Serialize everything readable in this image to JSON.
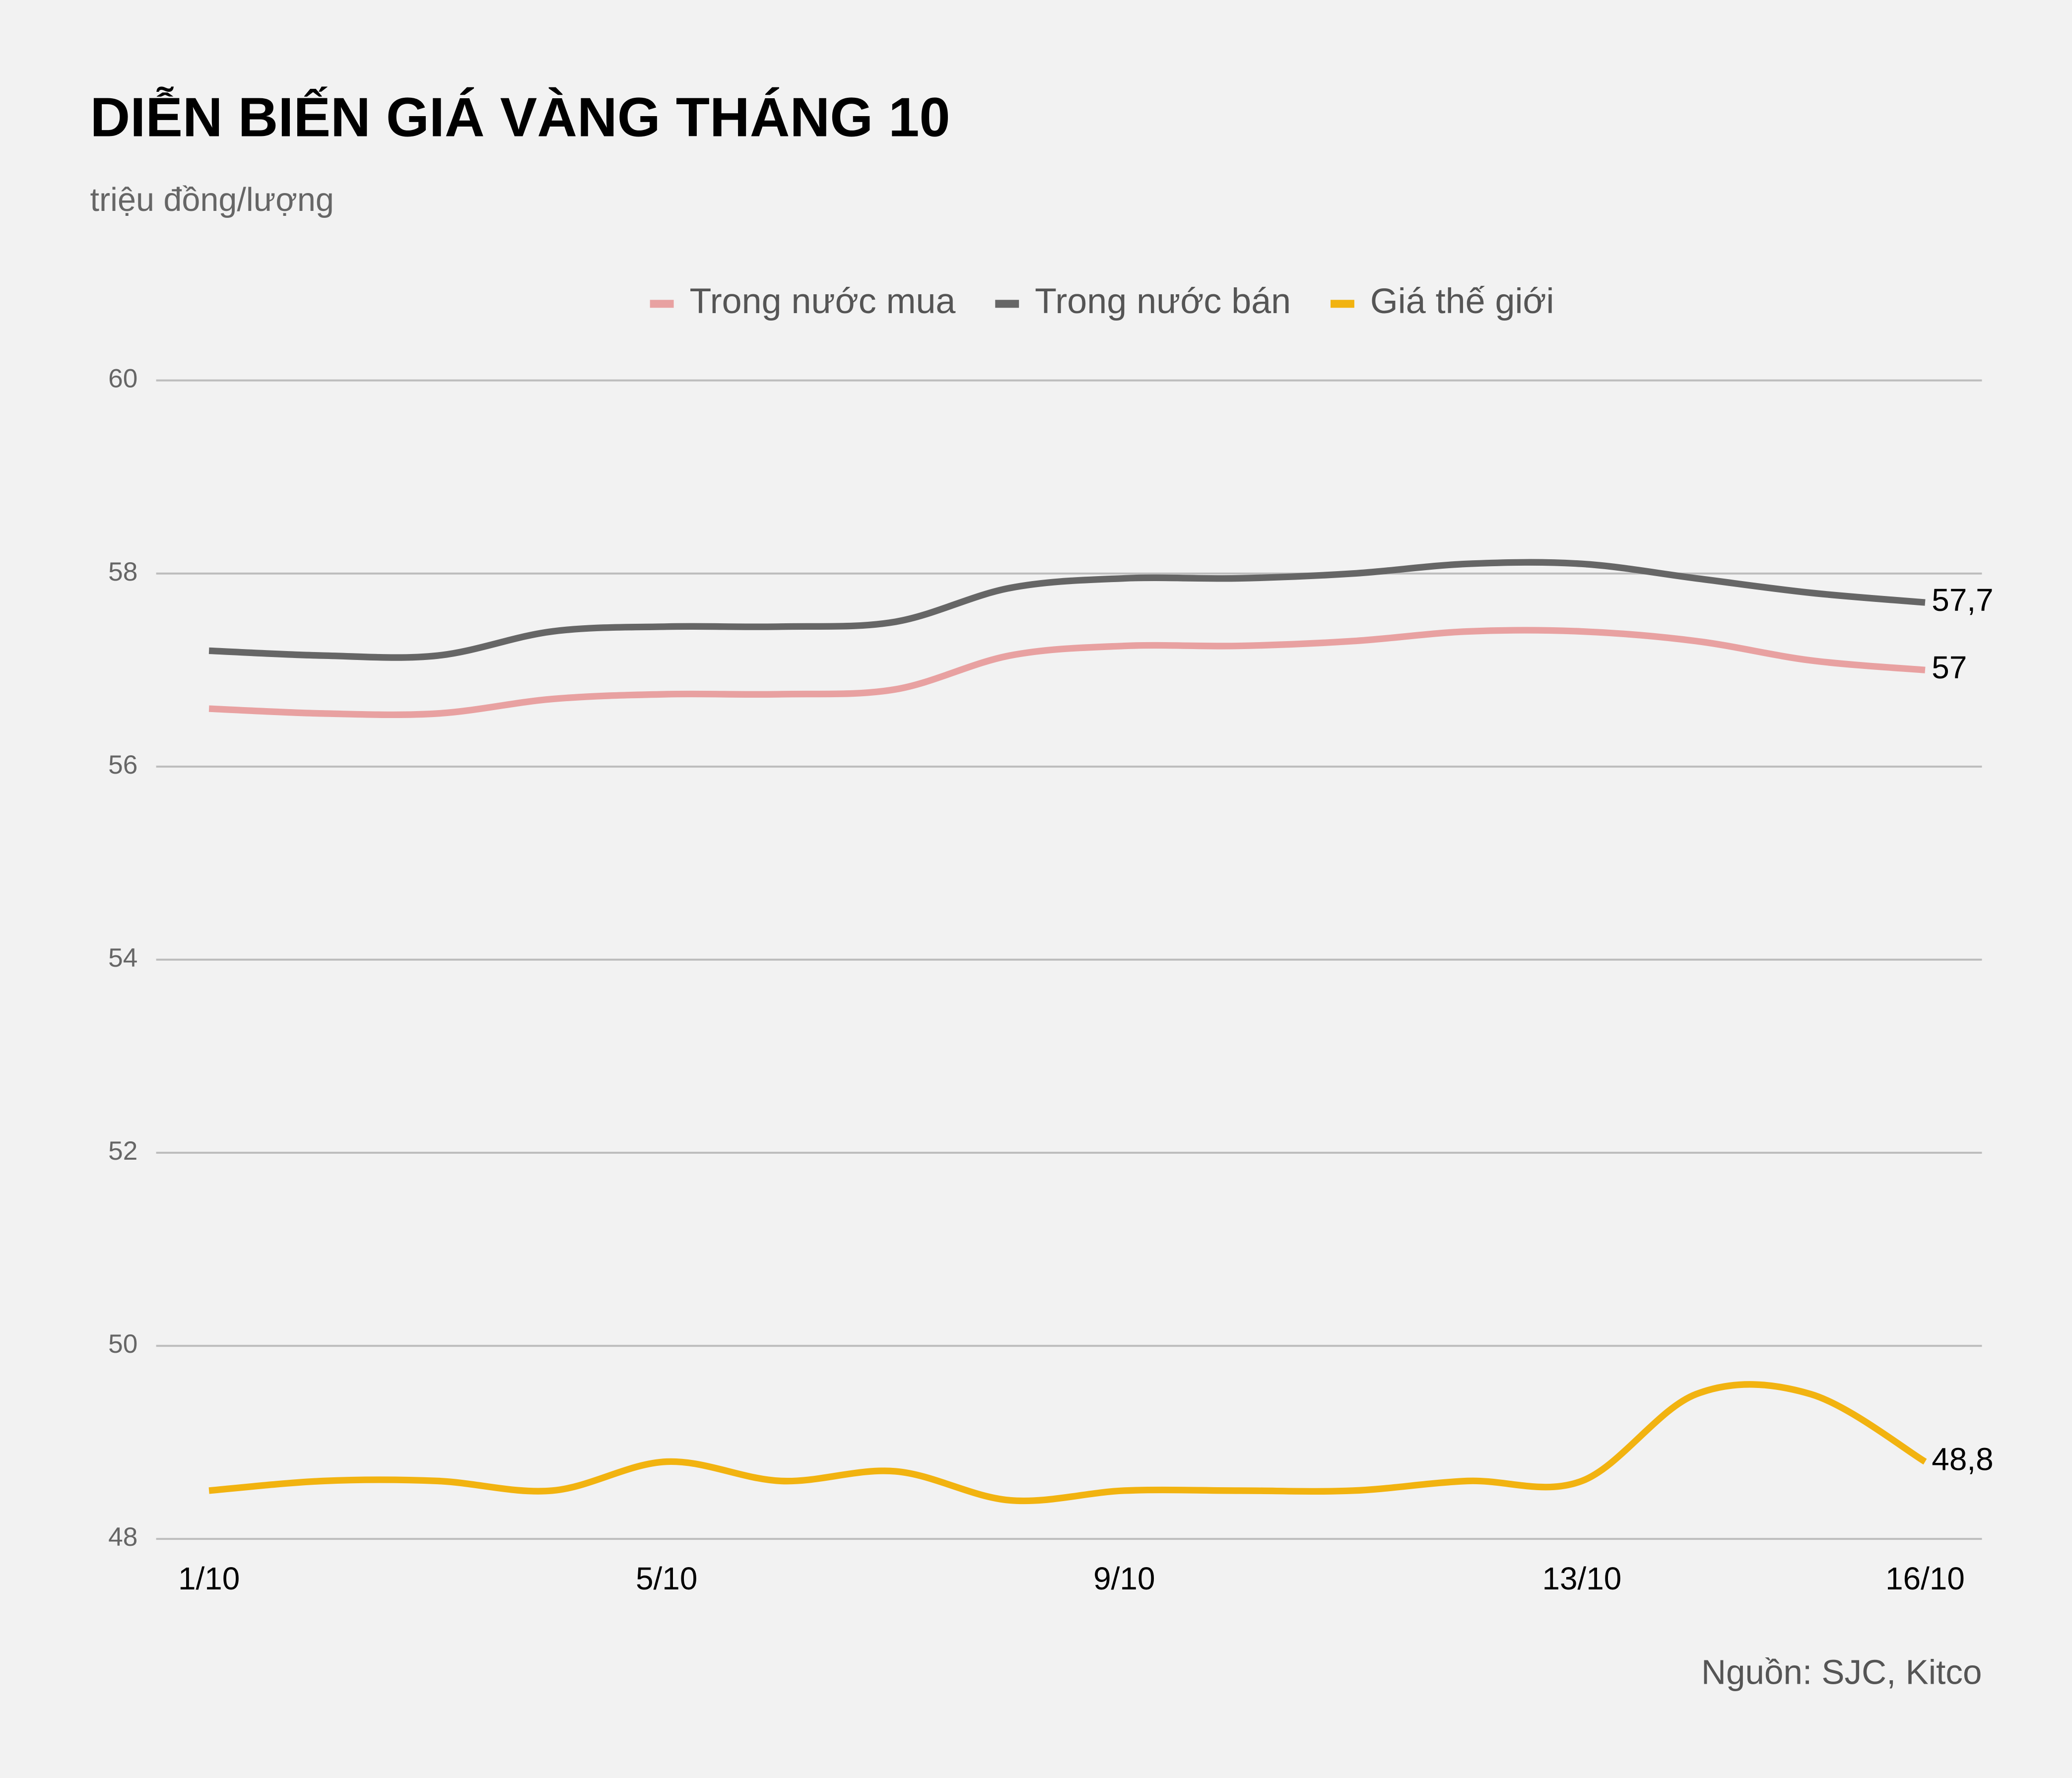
{
  "chart_data": {
    "type": "line",
    "title": "DIỄN BIẾN GIÁ VÀNG THÁNG 10",
    "subtitle": "triệu đồng/lượng",
    "source": "Nguồn: SJC, Kitco",
    "categories": [
      "1/10",
      null,
      null,
      null,
      "5/10",
      null,
      null,
      null,
      "9/10",
      null,
      null,
      null,
      "13/10",
      null,
      null,
      "16/10"
    ],
    "series": [
      {
        "name": "Trong nước mua",
        "color": "#e8a1a1",
        "values": [
          56.6,
          56.55,
          56.55,
          56.7,
          56.75,
          56.75,
          56.8,
          57.15,
          57.25,
          57.25,
          57.3,
          57.4,
          57.4,
          57.3,
          57.1,
          57
        ],
        "value_labels": [
          null,
          null,
          null,
          null,
          null,
          null,
          null,
          null,
          null,
          null,
          null,
          null,
          null,
          null,
          null,
          "57"
        ]
      },
      {
        "name": "Trong nước bán",
        "color": "#666666",
        "values": [
          57.2,
          57.15,
          57.15,
          57.4,
          57.45,
          57.45,
          57.5,
          57.85,
          57.95,
          57.95,
          58.0,
          58.1,
          58.1,
          57.95,
          57.8,
          57.7
        ],
        "value_labels": [
          null,
          null,
          null,
          null,
          null,
          null,
          null,
          null,
          null,
          null,
          null,
          null,
          null,
          null,
          null,
          "57,7"
        ]
      },
      {
        "name": "Giá thế giới",
        "color": "#f2b310",
        "values": [
          48.5,
          48.6,
          48.6,
          48.5,
          48.8,
          48.6,
          48.7,
          48.4,
          48.5,
          48.5,
          48.5,
          48.6,
          48.6,
          49.5,
          49.5,
          48.8
        ],
        "value_labels": [
          null,
          null,
          null,
          null,
          null,
          null,
          null,
          null,
          null,
          null,
          null,
          null,
          null,
          null,
          null,
          "48,8"
        ]
      }
    ],
    "ylim": [
      48,
      60
    ],
    "yticks": [
      48,
      50,
      52,
      54,
      56,
      58,
      60
    ],
    "grid": true,
    "legend": "top",
    "smooth": true
  }
}
